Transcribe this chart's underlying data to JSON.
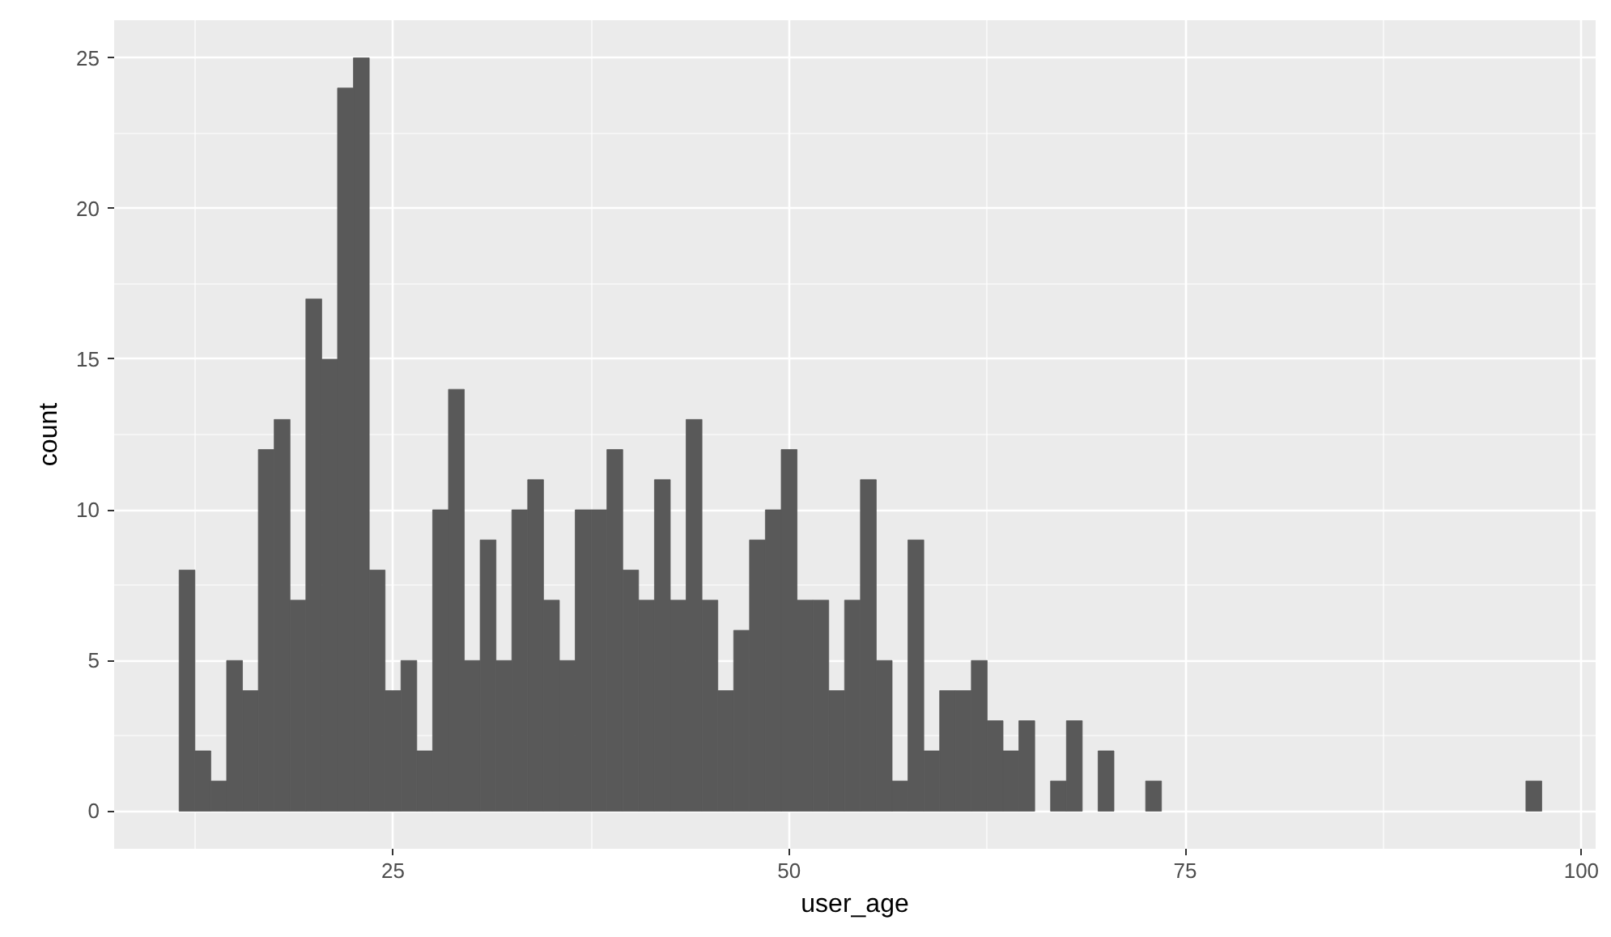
{
  "chart_data": {
    "type": "histogram",
    "xlabel": "user_age",
    "ylabel": "count",
    "color": "#595959",
    "bins": [
      11.5,
      12.5,
      13.5,
      14.5,
      15.5,
      16.5,
      17.5,
      18.5,
      19.5,
      20.5,
      21.5,
      22.5,
      23.5,
      24.5,
      25.5,
      26.5,
      27.5,
      28.5,
      29.5,
      30.5,
      31.5,
      32.5,
      33.5,
      34.5,
      35.5,
      36.5,
      37.5,
      38.5,
      39.5,
      40.5,
      41.5,
      42.5,
      43.5,
      44.5,
      45.5,
      46.5,
      47.5,
      48.5,
      49.5,
      50.5,
      51.5,
      52.5,
      53.5,
      54.5,
      55.5,
      56.5,
      57.5,
      58.5,
      59.5,
      60.5,
      61.5,
      62.5,
      63.5,
      64.5,
      65.5,
      66.5,
      67.5,
      68.5,
      69.5,
      70.5,
      71.5,
      72.5,
      73.5,
      74.5,
      75.5,
      76.5,
      77.5,
      78.5,
      79.5,
      80.5,
      81.5,
      82.5,
      83.5,
      84.5,
      85.5,
      86.5,
      87.5,
      88.5,
      89.5,
      90.5,
      91.5,
      92.5,
      93.5,
      94.5,
      95.5,
      96.5,
      97.5
    ],
    "values": [
      8,
      2,
      1,
      5,
      4,
      12,
      13,
      7,
      17,
      15,
      24,
      25,
      8,
      4,
      5,
      2,
      10,
      14,
      5,
      9,
      5,
      10,
      11,
      7,
      5,
      10,
      10,
      12,
      8,
      7,
      11,
      7,
      13,
      7,
      4,
      6,
      9,
      10,
      12,
      7,
      7,
      4,
      7,
      11,
      5,
      1,
      9,
      2,
      4,
      4,
      5,
      3,
      2,
      3,
      0,
      1,
      3,
      0,
      2,
      0,
      0,
      1,
      0,
      0,
      0,
      0,
      0,
      0,
      0,
      0,
      0,
      0,
      0,
      0,
      0,
      0,
      0,
      0,
      0,
      0,
      0,
      0,
      0,
      0,
      0,
      1
    ],
    "xlim": [
      7.4,
      100.9
    ],
    "ylim": [
      -1.25,
      26.25
    ],
    "xticks": [
      25,
      50,
      75,
      100
    ],
    "yticks": [
      0,
      5,
      10,
      15,
      20,
      25
    ],
    "grid": true
  }
}
